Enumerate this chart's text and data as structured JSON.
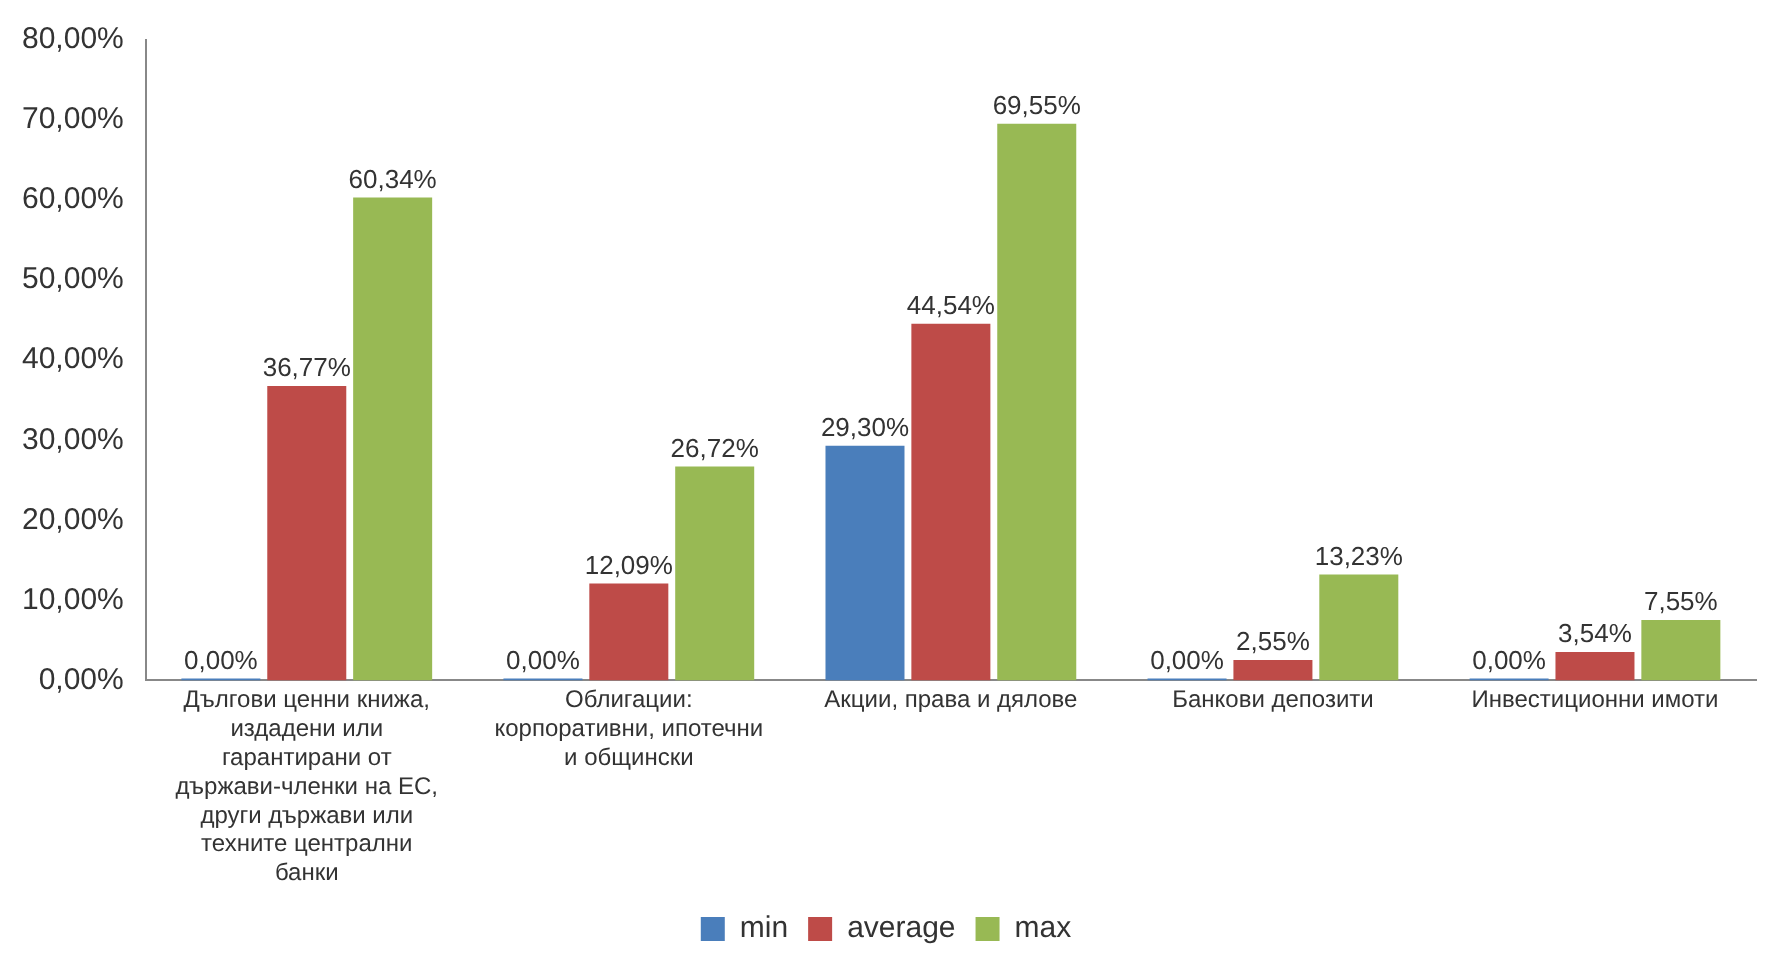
{
  "chart_data": {
    "type": "bar",
    "categories": [
      "Дългови ценни книжа, издадени или гарантирани от държави-членки на ЕС, други държави или техните централни банки",
      "Облигации: корпоративни, ипотечни и общински",
      "Акции, права и дялове",
      "Банкови депозити",
      "Инвестиционни имоти"
    ],
    "series": [
      {
        "name": "min",
        "color": "#4a7ebb",
        "values": [
          0,
          0,
          29.3,
          0,
          0
        ],
        "value_labels": [
          "0,00%",
          "0,00%",
          "29,30%",
          "0,00%",
          "0,00%"
        ]
      },
      {
        "name": "average",
        "color": "#be4b48",
        "values": [
          36.77,
          12.09,
          44.54,
          2.55,
          3.54
        ],
        "value_labels": [
          "36,77%",
          "12,09%",
          "44,54%",
          "2,55%",
          "3,54%"
        ]
      },
      {
        "name": "max",
        "color": "#98b954",
        "values": [
          60.34,
          26.72,
          69.55,
          13.23,
          7.55
        ],
        "value_labels": [
          "60,34%",
          "26,72%",
          "69,55%",
          "13,23%",
          "7,55%"
        ]
      }
    ],
    "ylim": [
      0,
      80
    ],
    "yticks": [
      {
        "value": 0,
        "label": "0,00%"
      },
      {
        "value": 10,
        "label": "10,00%"
      },
      {
        "value": 20,
        "label": "20,00%"
      },
      {
        "value": 30,
        "label": "30,00%"
      },
      {
        "value": 40,
        "label": "40,00%"
      },
      {
        "value": 50,
        "label": "50,00%"
      },
      {
        "value": 60,
        "label": "60,00%"
      },
      {
        "value": 70,
        "label": "70,00%"
      },
      {
        "value": 80,
        "label": "80,00%"
      }
    ],
    "grid": false,
    "legend": "bottom"
  }
}
